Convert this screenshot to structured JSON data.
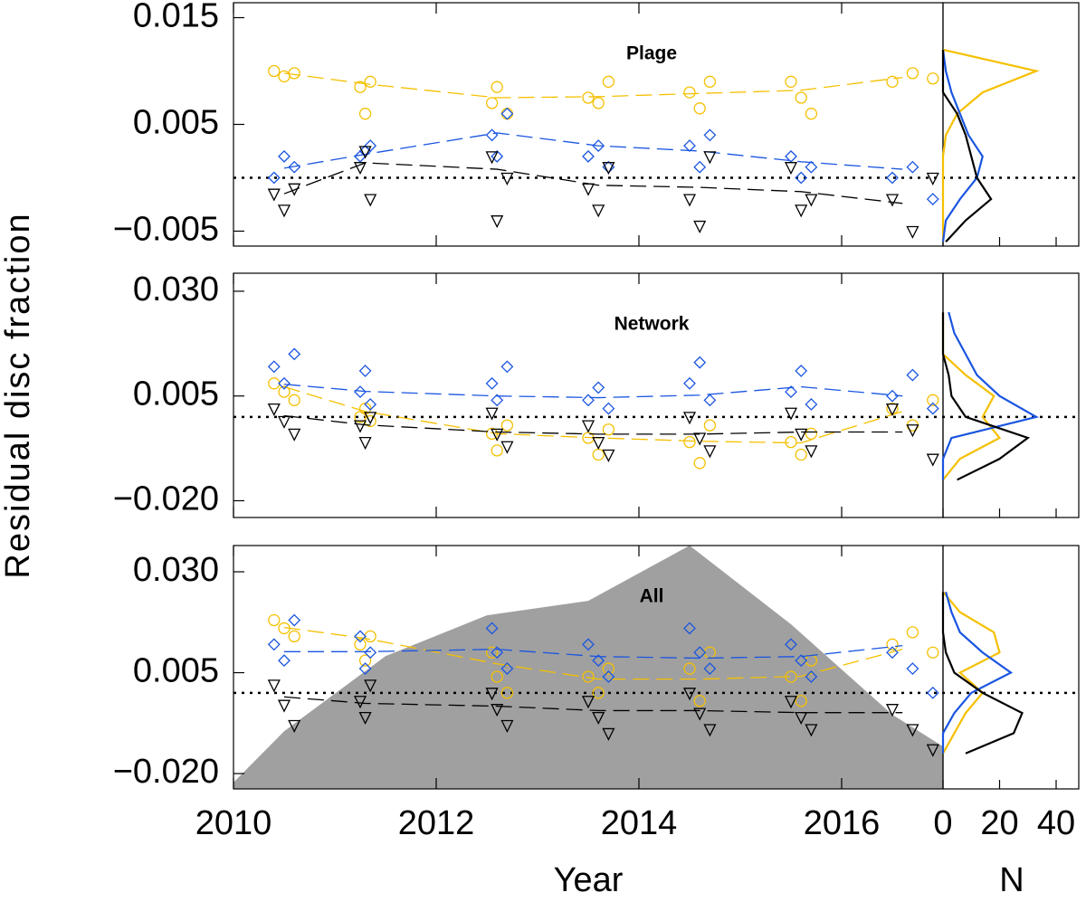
{
  "chart_data": {
    "type": "scatter",
    "xlabel": "Year",
    "ylabel": "Residual disc fraction",
    "xlim": [
      2010,
      2017
    ],
    "xticks": [
      2010,
      2012,
      2014,
      2016
    ],
    "hist_xlabel": "N",
    "hist_xlim": [
      0,
      48
    ],
    "hist_xticks": [
      0,
      20,
      40
    ],
    "panels": [
      {
        "label": "Plage",
        "ylim": [
          -0.0064,
          0.0164
        ],
        "yticks": [
          0.015,
          0.005,
          {
            "value": -0.005,
            "label": "−0.005"
          }
        ],
        "reference": 0,
        "x": [
          2010.4,
          2010.5,
          2010.6,
          2011.25,
          2011.3,
          2011.35,
          2012.55,
          2012.6,
          2012.7,
          2013.5,
          2013.6,
          2013.7,
          2014.5,
          2014.6,
          2014.7,
          2015.5,
          2015.6,
          2015.7,
          2016.5,
          2016.7,
          2016.9
        ],
        "trend_x": [
          2010.5,
          2011.3,
          2012.6,
          2013.6,
          2014.6,
          2015.6,
          2016.6
        ],
        "series": [
          {
            "color": "#f5c000",
            "marker": "circle",
            "values": [
              0.01,
              0.0095,
              0.0098,
              0.0085,
              0.006,
              0.009,
              0.007,
              0.0085,
              0.006,
              0.0075,
              0.007,
              0.009,
              0.008,
              0.0065,
              0.009,
              0.009,
              0.0075,
              0.006,
              0.009,
              0.0098,
              0.0093
            ],
            "trend": [
              0.0098,
              0.0088,
              0.0075,
              0.0076,
              0.0079,
              0.0082,
              0.0094
            ]
          },
          {
            "color": "#1a55e0",
            "marker": "diamond",
            "values": [
              0.0,
              0.002,
              0.001,
              0.002,
              0.0025,
              0.003,
              0.004,
              0.002,
              0.006,
              0.002,
              0.003,
              0.001,
              0.003,
              0.001,
              0.004,
              0.002,
              0.0,
              0.001,
              0.0,
              0.001,
              -0.002
            ],
            "trend": [
              0.0009,
              0.0022,
              0.0042,
              0.003,
              0.0025,
              0.0015,
              0.0008
            ]
          },
          {
            "color": "#000000",
            "marker": "triangle",
            "values": [
              -0.0015,
              -0.003,
              -0.001,
              0.001,
              0.0025,
              -0.002,
              0.002,
              -0.004,
              0.0,
              -0.001,
              -0.003,
              0.001,
              -0.002,
              -0.0045,
              0.002,
              0.001,
              -0.003,
              -0.002,
              -0.002,
              -0.005,
              0.0
            ],
            "trend": [
              -0.0015,
              0.0014,
              0.0008,
              -0.0007,
              -0.0009,
              -0.0013,
              -0.0024
            ]
          }
        ],
        "hist": {
          "bins": [
            -0.006,
            -0.004,
            -0.002,
            0,
            0.002,
            0.004,
            0.006,
            0.008,
            0.01,
            0.012
          ],
          "series": [
            {
              "color": "#f5c000",
              "values": [
                0,
                0,
                0,
                0,
                0,
                1,
                5,
                14,
                33,
                0
              ]
            },
            {
              "color": "#1a55e0",
              "values": [
                0,
                1,
                6,
                12,
                14,
                9,
                6,
                3,
                1,
                0
              ]
            },
            {
              "color": "#000000",
              "values": [
                1,
                8,
                17,
                12,
                10,
                8,
                5,
                0,
                0,
                0
              ]
            }
          ]
        }
      },
      {
        "label": "Network",
        "ylim": [
          -0.024,
          0.0343
        ],
        "yticks": [
          {
            "value": 0.03,
            "label": "0.030"
          },
          0.005,
          {
            "value": -0.02,
            "label": "−0.020"
          }
        ],
        "reference": 0,
        "x": [
          2010.4,
          2010.5,
          2010.6,
          2011.25,
          2011.3,
          2011.35,
          2012.55,
          2012.6,
          2012.7,
          2013.5,
          2013.6,
          2013.7,
          2014.5,
          2014.6,
          2014.7,
          2015.5,
          2015.6,
          2015.7,
          2016.5,
          2016.7,
          2016.9
        ],
        "trend_x": [
          2010.5,
          2011.3,
          2012.6,
          2013.6,
          2014.6,
          2015.6,
          2016.6
        ],
        "series": [
          {
            "color": "#f5c000",
            "marker": "circle",
            "values": [
              0.008,
              0.006,
              0.004,
              0.0,
              0.002,
              -0.001,
              -0.004,
              -0.008,
              -0.002,
              -0.005,
              -0.009,
              -0.003,
              -0.006,
              -0.011,
              -0.002,
              -0.006,
              -0.009,
              -0.004,
              0.002,
              -0.002,
              0.004
            ],
            "trend": [
              0.0072,
              0.0013,
              -0.004,
              -0.005,
              -0.0058,
              -0.0062,
              0.0013
            ]
          },
          {
            "color": "#1a55e0",
            "marker": "diamond",
            "values": [
              0.012,
              0.008,
              0.015,
              0.006,
              0.011,
              0.003,
              0.008,
              0.004,
              0.012,
              0.004,
              0.007,
              0.002,
              0.008,
              0.013,
              0.004,
              0.006,
              0.011,
              0.003,
              0.005,
              0.01,
              0.002
            ],
            "trend": [
              0.0078,
              0.0061,
              0.005,
              0.0046,
              0.0052,
              0.0072,
              0.005
            ]
          },
          {
            "color": "#000000",
            "marker": "triangle",
            "values": [
              0.002,
              -0.001,
              -0.004,
              -0.002,
              -0.006,
              0.0,
              0.001,
              -0.004,
              -0.007,
              -0.002,
              -0.006,
              -0.009,
              0.0,
              -0.005,
              -0.008,
              0.001,
              -0.004,
              -0.008,
              0.002,
              -0.003,
              -0.01
            ],
            "trend": [
              0.0003,
              -0.0019,
              -0.0036,
              -0.0041,
              -0.0041,
              -0.0036,
              -0.0036
            ]
          }
        ],
        "hist": {
          "bins": [
            -0.015,
            -0.01,
            -0.005,
            0,
            0.005,
            0.01,
            0.015,
            0.02,
            0.025
          ],
          "series": [
            {
              "color": "#f5c000",
              "values": [
                0,
                6,
                20,
                14,
                18,
                8,
                0,
                0,
                0
              ]
            },
            {
              "color": "#1a55e0",
              "values": [
                0,
                0,
                3,
                33,
                20,
                12,
                8,
                4,
                2
              ]
            },
            {
              "color": "#000000",
              "values": [
                5,
                20,
                30,
                8,
                3,
                2,
                0,
                0,
                0
              ]
            }
          ]
        }
      },
      {
        "label": "All",
        "ylim": [
          -0.0238,
          0.0365
        ],
        "yticks": [
          {
            "value": 0.03,
            "label": "0.030"
          },
          0.005,
          {
            "value": -0.02,
            "label": "−0.020"
          }
        ],
        "reference": 0,
        "area": {
          "color": "#a0a0a0",
          "x": [
            2010,
            2010.5,
            2011.5,
            2012.5,
            2013.5,
            2014.5,
            2015.5,
            2016.5,
            2017
          ],
          "values": [
            -0.0222,
            -0.0095,
            0.0091,
            0.0192,
            0.0228,
            0.0365,
            0.017,
            -0.0054,
            -0.0133
          ]
        },
        "x": [
          2010.4,
          2010.5,
          2010.6,
          2011.25,
          2011.3,
          2011.35,
          2012.55,
          2012.6,
          2012.7,
          2013.5,
          2013.6,
          2013.7,
          2014.5,
          2014.6,
          2014.7,
          2015.5,
          2015.6,
          2015.7,
          2016.5,
          2016.7,
          2016.9
        ],
        "trend_x": [
          2010.5,
          2011.3,
          2012.6,
          2013.6,
          2014.6,
          2015.6,
          2016.6
        ],
        "series": [
          {
            "color": "#f5c000",
            "marker": "circle",
            "values": [
              0.018,
              0.016,
              0.014,
              0.012,
              0.008,
              0.014,
              0.01,
              0.004,
              0.0,
              0.004,
              0.0,
              0.006,
              0.006,
              -0.002,
              0.01,
              0.004,
              -0.002,
              0.008,
              0.012,
              0.015,
              0.01
            ],
            "trend": [
              0.0162,
              0.0135,
              0.0072,
              0.0034,
              0.0034,
              0.0041,
              0.0108
            ]
          },
          {
            "color": "#1a55e0",
            "marker": "diamond",
            "values": [
              0.012,
              0.008,
              0.018,
              0.014,
              0.006,
              0.01,
              0.016,
              0.01,
              0.006,
              0.012,
              0.008,
              0.004,
              0.016,
              0.01,
              0.006,
              0.012,
              0.008,
              0.004,
              0.01,
              0.006,
              0.0
            ],
            "trend": [
              0.0102,
              0.0102,
              0.0108,
              0.009,
              0.0086,
              0.009,
              0.0117
            ]
          },
          {
            "color": "#000000",
            "marker": "triangle",
            "values": [
              0.002,
              -0.003,
              -0.008,
              -0.002,
              -0.006,
              0.002,
              0.0,
              -0.004,
              -0.008,
              -0.002,
              -0.006,
              -0.01,
              0.0,
              -0.005,
              -0.009,
              -0.002,
              -0.006,
              -0.009,
              -0.004,
              -0.009,
              -0.014
            ],
            "trend": [
              -0.001,
              -0.0026,
              -0.0033,
              -0.0044,
              -0.0044,
              -0.0049,
              -0.0049
            ]
          }
        ],
        "hist": {
          "bins": [
            -0.015,
            -0.01,
            -0.005,
            0,
            0.005,
            0.01,
            0.015,
            0.02,
            0.025
          ],
          "series": [
            {
              "color": "#f5c000",
              "values": [
                0,
                4,
                8,
                14,
                6,
                20,
                18,
                6,
                0
              ]
            },
            {
              "color": "#1a55e0",
              "values": [
                0,
                0,
                4,
                10,
                24,
                14,
                6,
                3,
                1
              ]
            },
            {
              "color": "#000000",
              "values": [
                8,
                25,
                28,
                14,
                4,
                1,
                0,
                0,
                0
              ]
            }
          ]
        }
      }
    ]
  }
}
